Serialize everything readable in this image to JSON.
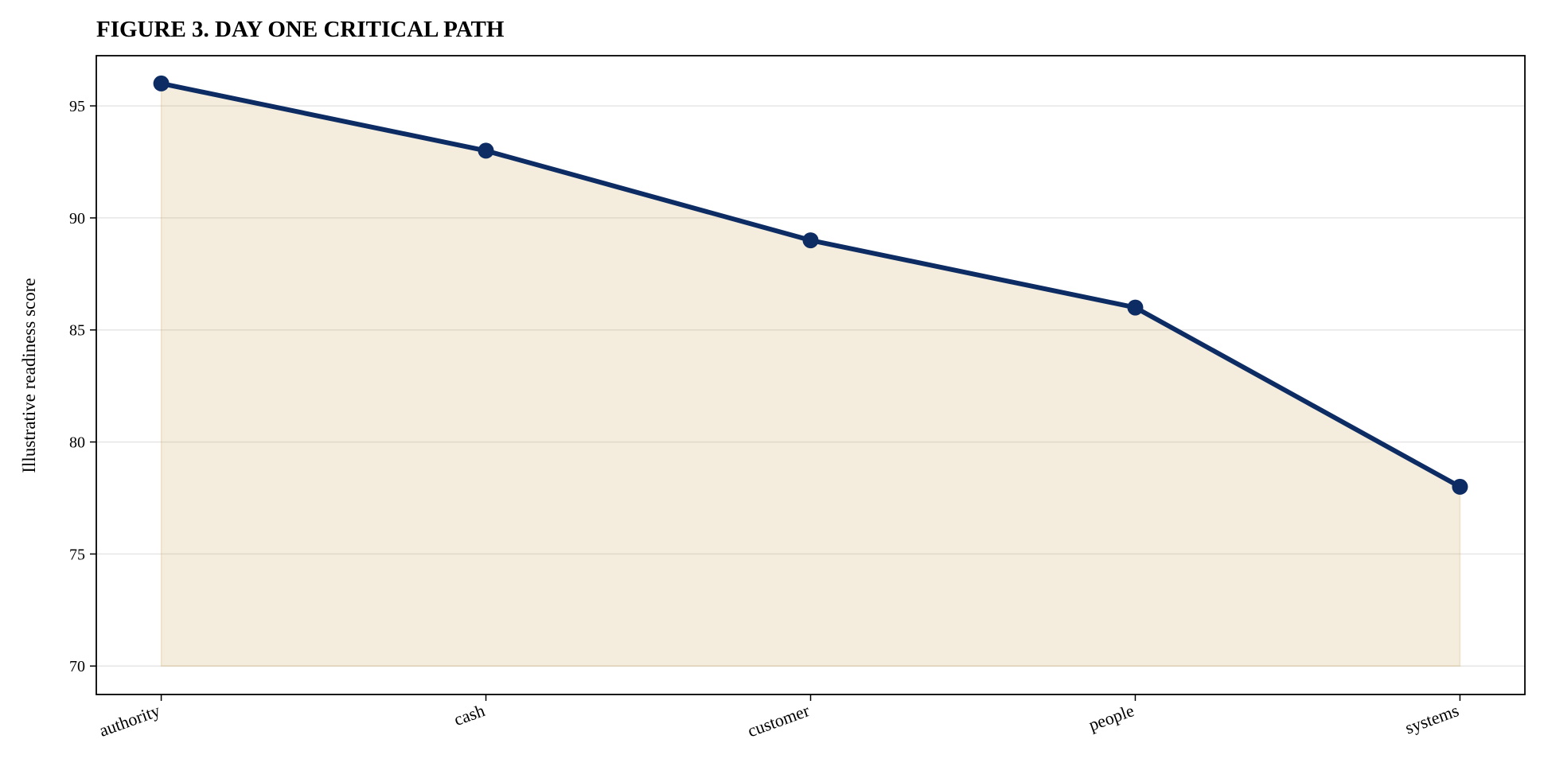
{
  "chart_data": {
    "type": "line",
    "title": "FIGURE 3. DAY ONE CRITICAL PATH",
    "y_label": "Illustrative readiness score",
    "categories": [
      "authority",
      "cash",
      "customer",
      "people",
      "systems"
    ],
    "values": [
      96,
      93,
      89,
      86,
      78
    ],
    "color": "#0c2c63",
    "area_color": "#c9a24e",
    "area_baseline": 70,
    "ylim": [
      68.73,
      97.24
    ],
    "yticks": [
      70,
      75,
      80,
      85,
      90,
      95
    ],
    "grid": true
  }
}
